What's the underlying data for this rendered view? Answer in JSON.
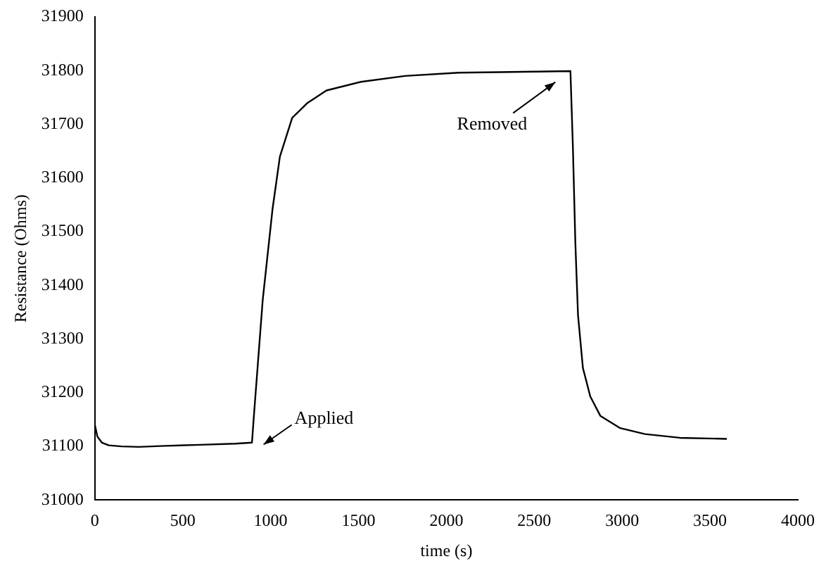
{
  "chart_data": {
    "type": "line",
    "xlabel": "time (s)",
    "ylabel": "Resistance (Ohms)",
    "xlim": [
      0,
      4000
    ],
    "xticks": [
      0,
      500,
      1000,
      1500,
      2000,
      2500,
      3000,
      3500,
      4000
    ],
    "ylim": [
      31000,
      31900
    ],
    "yticks": [
      31000,
      31100,
      31200,
      31300,
      31400,
      31500,
      31600,
      31700,
      31800,
      31900
    ],
    "grid": false,
    "legend": false,
    "marker": "none",
    "line_style": "solid",
    "annotations": [
      "Applied",
      "Removed"
    ],
    "series": [
      {
        "color": "#000000",
        "x": [
          0,
          15,
          40,
          80,
          150,
          250,
          400,
          600,
          800,
          894,
          905,
          955,
          1011,
          1053,
          1123,
          1207,
          1318,
          1514,
          1765,
          2070,
          2300,
          2500,
          2706,
          2720,
          2734,
          2749,
          2777,
          2819,
          2876,
          2989,
          3130,
          3328,
          3596
        ],
        "values": [
          31140,
          31118,
          31107,
          31102,
          31100,
          31099,
          31101,
          31103,
          31105,
          31107,
          31157,
          31372,
          31542,
          31640,
          31712,
          31739,
          31763,
          31779,
          31790,
          31796,
          31797,
          31798,
          31799,
          31658,
          31479,
          31345,
          31246,
          31193,
          31157,
          31134,
          31123,
          31116,
          31114
        ]
      }
    ]
  }
}
